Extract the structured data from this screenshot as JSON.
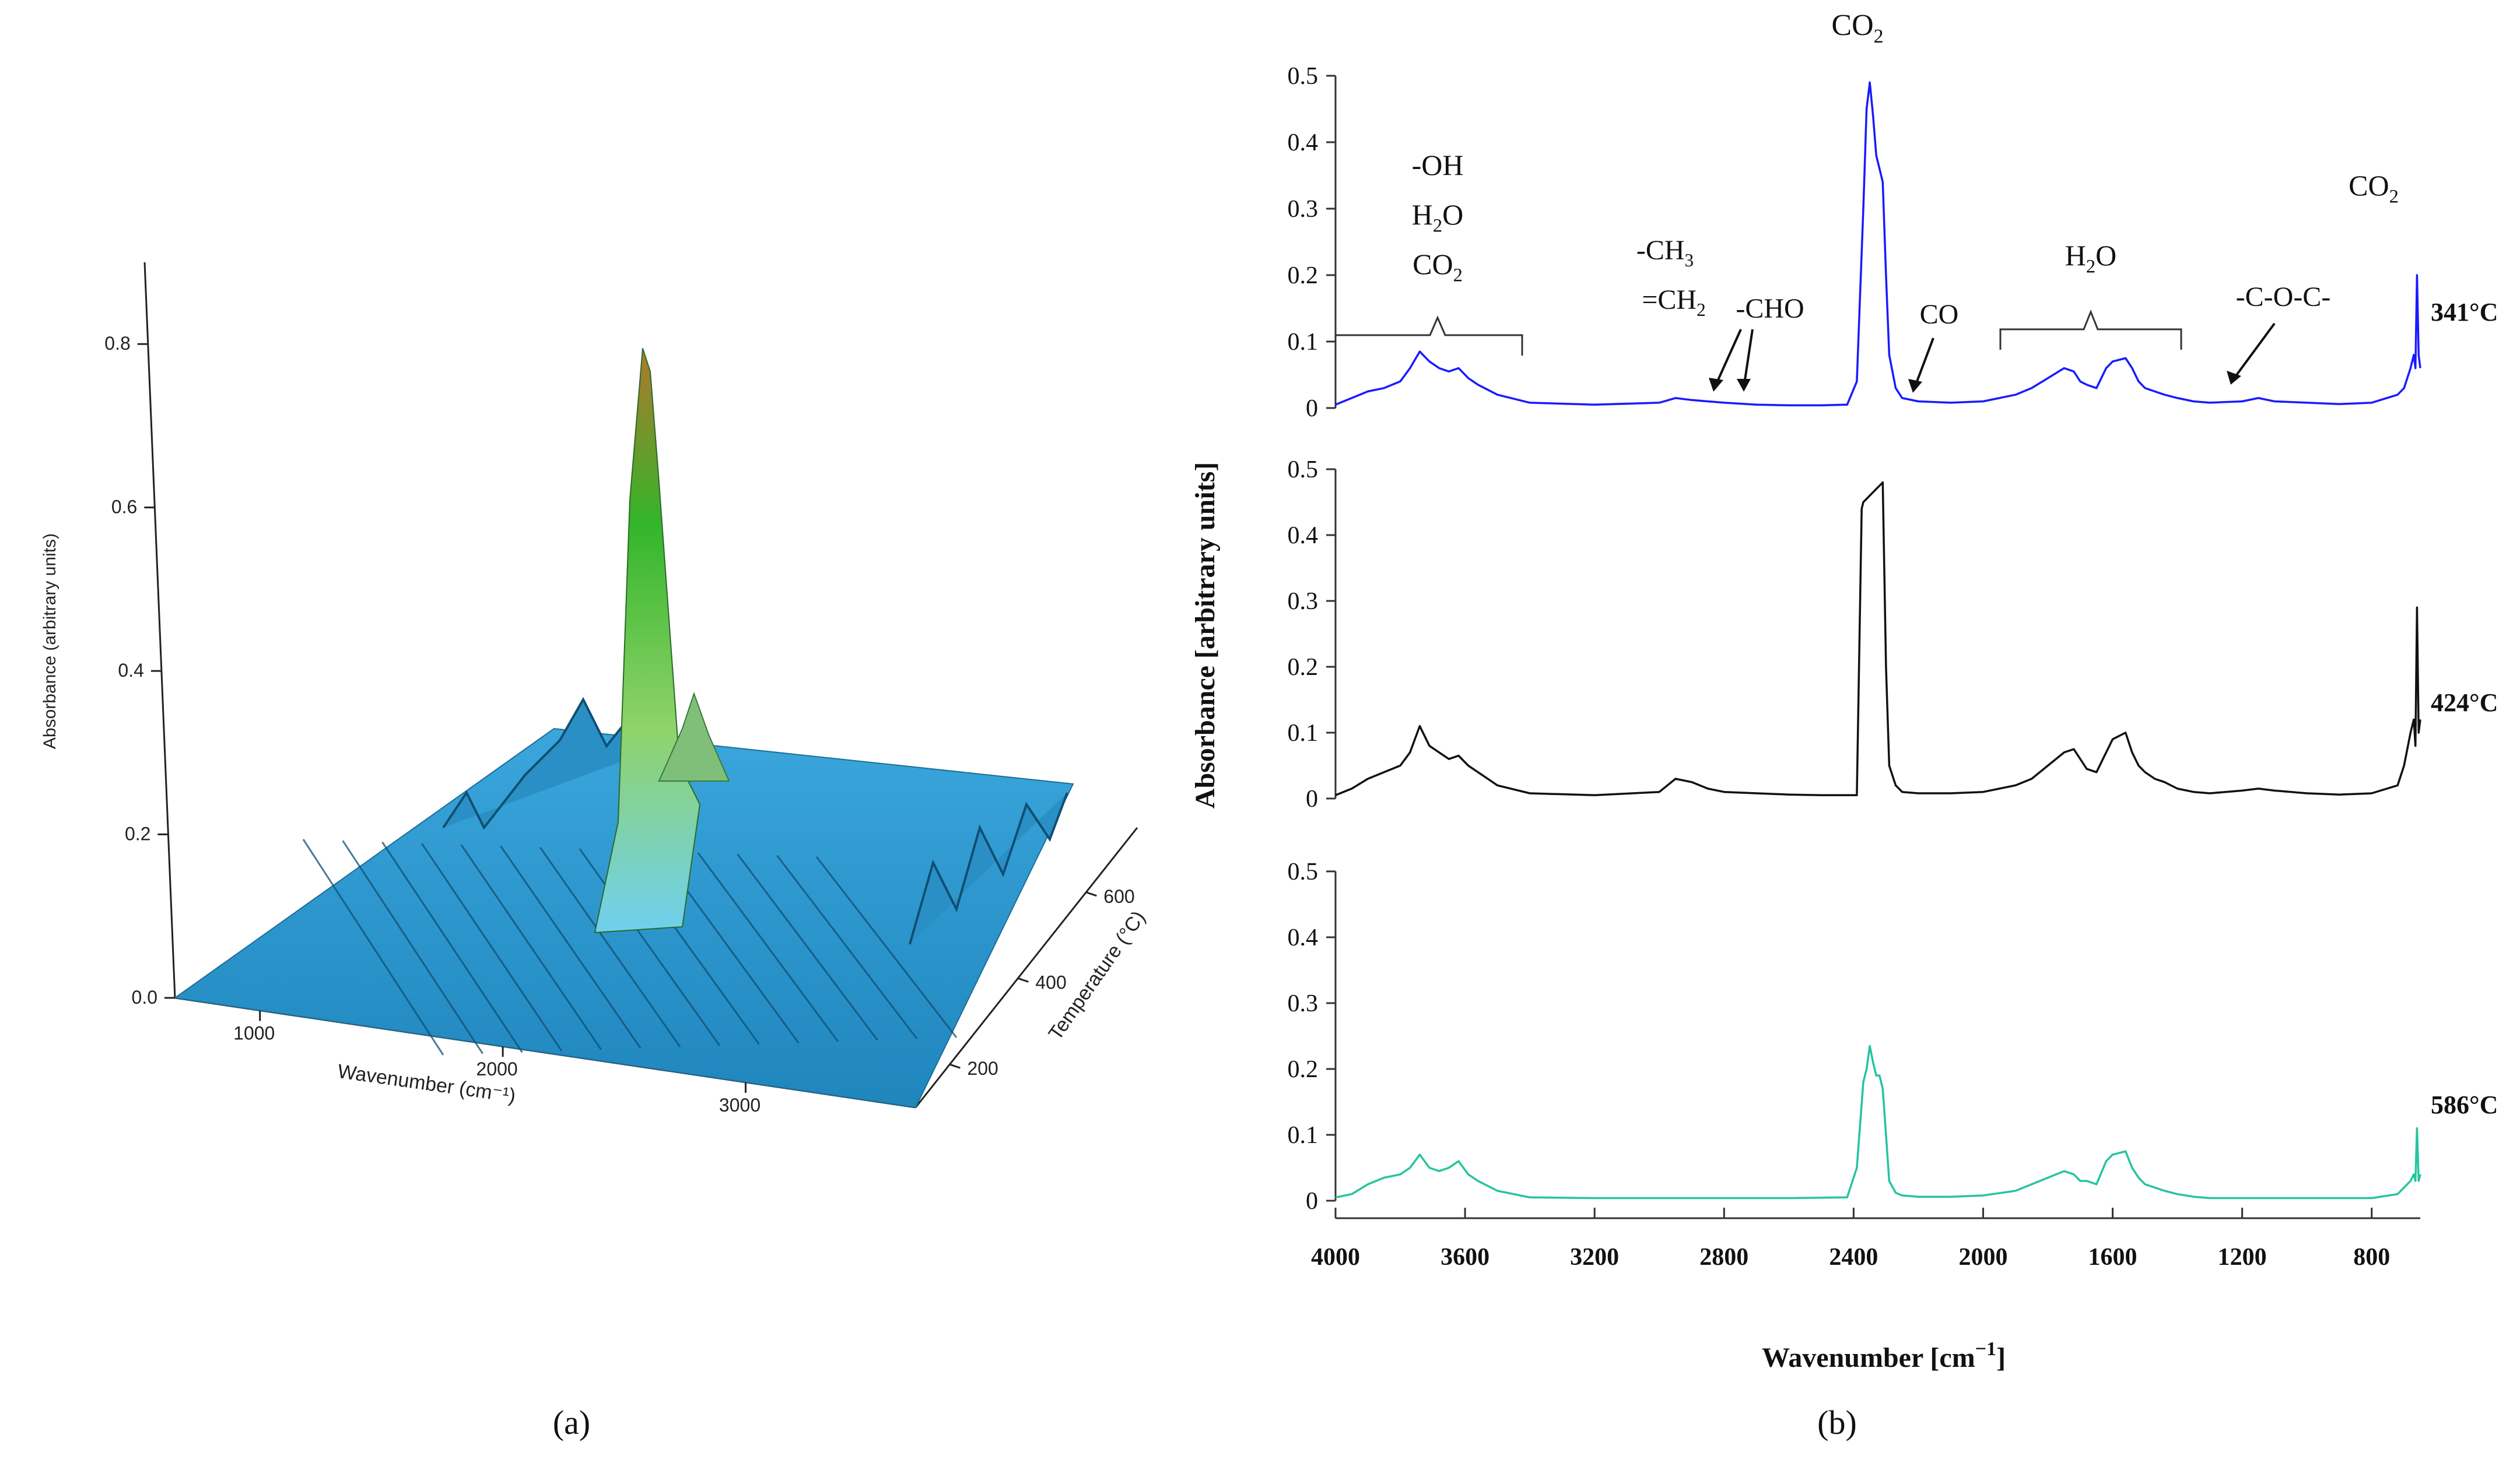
{
  "figure": {
    "panel_a_label": "(a)",
    "panel_b_label": "(b)"
  },
  "chart_data": [
    {
      "type": "surface3d",
      "title": "",
      "zlabel": "Absorbance (arbitrary units)",
      "xlabel": "Wavenumber (cm⁻¹)",
      "ylabel": "Temperature (°C)",
      "z_ticks": [
        "0.0",
        "0.2",
        "0.4",
        "0.6",
        "0.8"
      ],
      "x_ticks": [
        "1000",
        "2000",
        "3000"
      ],
      "y_ticks": [
        "200",
        "400",
        "600"
      ],
      "zlim": [
        0,
        0.9
      ],
      "peak_absorbance": 0.88,
      "peak_wavenumber": 2350,
      "colors": {
        "surface": "#1f93c8",
        "peak_low": "#8fd36a",
        "peak_mid": "#33b52a",
        "peak_top": "#b0782c"
      }
    },
    {
      "type": "line",
      "xlabel": "Wavenumber [cm",
      "xlabel_sup": "−1",
      "xlabel_close": "]",
      "ylabel": "Absorbance [arbitrary units]",
      "xlim": [
        4000,
        650
      ],
      "x_ticks": [
        "4000",
        "3600",
        "3200",
        "2800",
        "2400",
        "2000",
        "1600",
        "1200",
        "800"
      ],
      "y_ticks": [
        "0",
        "0.1",
        "0.2",
        "0.3",
        "0.4",
        "0.5"
      ],
      "ylim": [
        0,
        0.5
      ],
      "series": [
        {
          "name": "341°C",
          "color": "#1a1aff",
          "x": [
            4000,
            3950,
            3900,
            3850,
            3800,
            3770,
            3740,
            3710,
            3680,
            3650,
            3620,
            3590,
            3560,
            3500,
            3400,
            3200,
            3000,
            2950,
            2900,
            2850,
            2800,
            2700,
            2600,
            2500,
            2420,
            2390,
            2370,
            2360,
            2350,
            2340,
            2330,
            2320,
            2310,
            2300,
            2290,
            2270,
            2250,
            2200,
            2100,
            2000,
            1900,
            1850,
            1800,
            1750,
            1720,
            1700,
            1680,
            1650,
            1620,
            1600,
            1560,
            1540,
            1520,
            1500,
            1470,
            1440,
            1400,
            1350,
            1300,
            1200,
            1150,
            1100,
            1000,
            900,
            800,
            720,
            700,
            680,
            670,
            665,
            660,
            655,
            650
          ],
          "y": [
            0.005,
            0.015,
            0.025,
            0.03,
            0.04,
            0.06,
            0.085,
            0.07,
            0.06,
            0.055,
            0.06,
            0.045,
            0.035,
            0.02,
            0.008,
            0.005,
            0.008,
            0.015,
            0.012,
            0.01,
            0.008,
            0.005,
            0.004,
            0.004,
            0.005,
            0.04,
            0.3,
            0.45,
            0.49,
            0.44,
            0.38,
            0.36,
            0.34,
            0.2,
            0.08,
            0.03,
            0.015,
            0.01,
            0.008,
            0.01,
            0.02,
            0.03,
            0.045,
            0.06,
            0.055,
            0.04,
            0.035,
            0.03,
            0.06,
            0.07,
            0.075,
            0.06,
            0.04,
            0.03,
            0.025,
            0.02,
            0.015,
            0.01,
            0.008,
            0.01,
            0.015,
            0.01,
            0.008,
            0.006,
            0.008,
            0.02,
            0.03,
            0.06,
            0.08,
            0.06,
            0.2,
            0.08,
            0.06
          ]
        },
        {
          "name": "424°C",
          "color": "#111111",
          "x": [
            4000,
            3950,
            3900,
            3850,
            3800,
            3770,
            3740,
            3710,
            3680,
            3650,
            3620,
            3590,
            3560,
            3500,
            3400,
            3200,
            3000,
            2950,
            2900,
            2850,
            2800,
            2700,
            2600,
            2500,
            2420,
            2390,
            2375,
            2370,
            2360,
            2350,
            2340,
            2330,
            2320,
            2310,
            2300,
            2290,
            2270,
            2250,
            2200,
            2100,
            2000,
            1900,
            1850,
            1800,
            1750,
            1720,
            1700,
            1680,
            1650,
            1620,
            1600,
            1560,
            1540,
            1520,
            1500,
            1470,
            1440,
            1400,
            1350,
            1300,
            1200,
            1150,
            1100,
            1000,
            900,
            800,
            720,
            700,
            680,
            670,
            665,
            660,
            655,
            650
          ],
          "y": [
            0.005,
            0.015,
            0.03,
            0.04,
            0.05,
            0.07,
            0.11,
            0.08,
            0.07,
            0.06,
            0.065,
            0.05,
            0.04,
            0.02,
            0.008,
            0.005,
            0.01,
            0.03,
            0.025,
            0.015,
            0.01,
            0.008,
            0.006,
            0.005,
            0.005,
            0.005,
            0.44,
            0.45,
            0.455,
            0.46,
            0.465,
            0.47,
            0.475,
            0.48,
            0.2,
            0.05,
            0.02,
            0.01,
            0.008,
            0.008,
            0.01,
            0.02,
            0.03,
            0.05,
            0.07,
            0.075,
            0.06,
            0.045,
            0.04,
            0.07,
            0.09,
            0.1,
            0.07,
            0.05,
            0.04,
            0.03,
            0.025,
            0.015,
            0.01,
            0.008,
            0.012,
            0.015,
            0.012,
            0.008,
            0.006,
            0.008,
            0.02,
            0.05,
            0.1,
            0.12,
            0.08,
            0.29,
            0.1,
            0.12
          ]
        },
        {
          "name": "586°C",
          "color": "#26c4a0",
          "x": [
            4000,
            3950,
            3900,
            3850,
            3800,
            3770,
            3740,
            3710,
            3680,
            3650,
            3620,
            3590,
            3560,
            3500,
            3400,
            3200,
            3000,
            2800,
            2600,
            2420,
            2390,
            2370,
            2360,
            2350,
            2340,
            2330,
            2320,
            2310,
            2300,
            2290,
            2270,
            2250,
            2200,
            2100,
            2000,
            1900,
            1850,
            1800,
            1750,
            1720,
            1700,
            1680,
            1650,
            1620,
            1600,
            1560,
            1540,
            1520,
            1500,
            1470,
            1440,
            1400,
            1350,
            1300,
            1200,
            1100,
            1000,
            900,
            800,
            720,
            700,
            680,
            670,
            665,
            660,
            655,
            650
          ],
          "y": [
            0.005,
            0.01,
            0.025,
            0.035,
            0.04,
            0.05,
            0.07,
            0.05,
            0.045,
            0.05,
            0.06,
            0.04,
            0.03,
            0.015,
            0.005,
            0.004,
            0.004,
            0.004,
            0.004,
            0.005,
            0.05,
            0.18,
            0.2,
            0.235,
            0.21,
            0.19,
            0.19,
            0.17,
            0.1,
            0.03,
            0.012,
            0.008,
            0.006,
            0.006,
            0.008,
            0.015,
            0.025,
            0.035,
            0.045,
            0.04,
            0.03,
            0.03,
            0.025,
            0.06,
            0.07,
            0.075,
            0.05,
            0.035,
            0.025,
            0.02,
            0.015,
            0.01,
            0.006,
            0.004,
            0.004,
            0.004,
            0.004,
            0.004,
            0.004,
            0.01,
            0.02,
            0.03,
            0.04,
            0.03,
            0.11,
            0.03,
            0.04
          ]
        }
      ],
      "annotations": [
        {
          "label": "-OH",
          "wavenumber": 3740
        },
        {
          "label": "H",
          "sub": "2",
          "tail": "O",
          "wavenumber": 3740
        },
        {
          "label": "CO",
          "sub": "2",
          "tail": "",
          "wavenumber": 3740
        },
        {
          "label": "-CH",
          "sub": "3",
          "tail": "",
          "wavenumber": 2900
        },
        {
          "label": "=CH",
          "sub": "2",
          "tail": "",
          "wavenumber": 2900
        },
        {
          "label": "-CHO",
          "wavenumber": 2650
        },
        {
          "label": "CO",
          "sub": "2",
          "tail": "",
          "wavenumber": 2350
        },
        {
          "label": "CO",
          "wavenumber": 2150
        },
        {
          "label": "H",
          "sub": "2",
          "tail": "O",
          "wavenumber": 1650
        },
        {
          "label": "-C-O-C-",
          "wavenumber": 1150
        },
        {
          "label": "CO",
          "sub": "2",
          "tail": "",
          "wavenumber": 667
        }
      ]
    }
  ]
}
